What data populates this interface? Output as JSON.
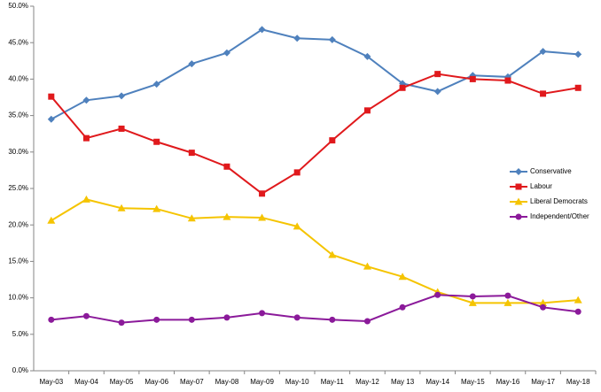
{
  "chart_data": {
    "type": "line",
    "categories": [
      "May-03",
      "May-04",
      "May-05",
      "May-06",
      "May-07",
      "May-08",
      "May-09",
      "May-10",
      "May-11",
      "May-12",
      "May 13",
      "May-14",
      "May-15",
      "May-16",
      "May-17",
      "May-18"
    ],
    "series": [
      {
        "name": "Conservative",
        "color": "#4f81bd",
        "marker": "diamond",
        "values": [
          34.5,
          37.1,
          37.7,
          39.3,
          42.1,
          43.6,
          46.8,
          45.6,
          45.4,
          43.1,
          39.4,
          38.3,
          40.5,
          40.3,
          43.8,
          43.4
        ]
      },
      {
        "name": "Labour",
        "color": "#e0191c",
        "marker": "square",
        "values": [
          37.6,
          31.9,
          33.2,
          31.4,
          29.9,
          28.0,
          24.3,
          27.2,
          31.6,
          35.7,
          38.8,
          40.7,
          40.0,
          39.8,
          38.0,
          38.8
        ]
      },
      {
        "name": "Liberal Democrats",
        "color": "#f5c400",
        "marker": "triangle",
        "values": [
          20.6,
          23.5,
          22.3,
          22.2,
          20.9,
          21.1,
          21.0,
          19.8,
          15.9,
          14.3,
          12.9,
          10.8,
          9.3,
          9.3,
          9.3,
          9.7
        ]
      },
      {
        "name": "Independent/Other",
        "color": "#8b1a9a",
        "marker": "circle",
        "values": [
          7.0,
          7.5,
          6.6,
          7.0,
          7.0,
          7.3,
          7.9,
          7.3,
          7.0,
          6.8,
          8.7,
          10.4,
          10.2,
          10.3,
          8.7,
          8.1
        ]
      }
    ],
    "ylim": [
      0,
      50
    ],
    "yticks": [
      {
        "value": 0,
        "label": "0.0%"
      },
      {
        "value": 5,
        "label": "5.0%"
      },
      {
        "value": 10,
        "label": "10.0%"
      },
      {
        "value": 15,
        "label": "15.0%"
      },
      {
        "value": 20,
        "label": "20.0%"
      },
      {
        "value": 25,
        "label": "25.0%"
      },
      {
        "value": 30,
        "label": "30.0%"
      },
      {
        "value": 35,
        "label": "35.0%"
      },
      {
        "value": 40,
        "label": "40.0%"
      },
      {
        "value": 45,
        "label": "45.0%"
      },
      {
        "value": 50,
        "label": "50.0%"
      }
    ],
    "grid": false,
    "legend": "right"
  }
}
